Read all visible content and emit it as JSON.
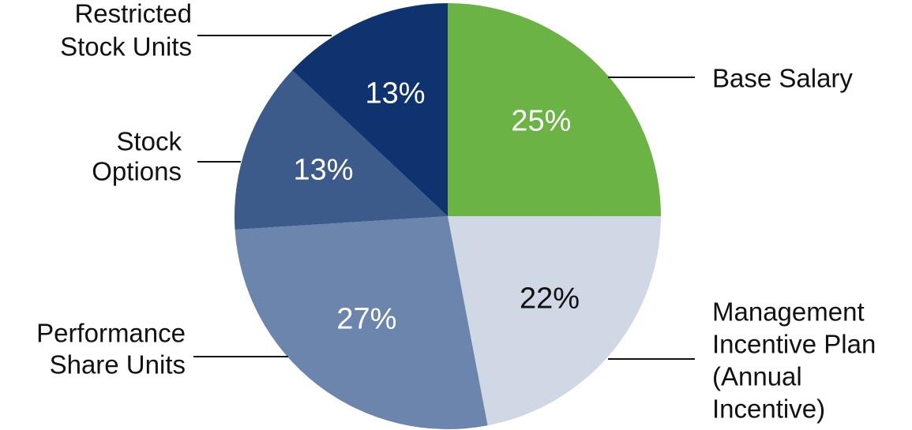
{
  "chart_data": {
    "type": "pie",
    "categories": [
      [
        "Base Salary"
      ],
      [
        "Management",
        "Incentive Plan",
        "(Annual",
        "Incentive)"
      ],
      [
        "Performance",
        "Share Units"
      ],
      [
        "Stock",
        "Options"
      ],
      [
        "Restricted",
        "Stock Units"
      ]
    ],
    "values": [
      25,
      22,
      27,
      13,
      13
    ],
    "value_labels": [
      "25%",
      "22%",
      "27%",
      "13%",
      "13%"
    ],
    "colors": [
      "#6ab344",
      "#d0d7e5",
      "#6c85ad",
      "#3c5a8a",
      "#0e336e"
    ],
    "value_label_colors": [
      "#ffffff",
      "#111111",
      "#ffffff",
      "#ffffff",
      "#ffffff"
    ]
  }
}
